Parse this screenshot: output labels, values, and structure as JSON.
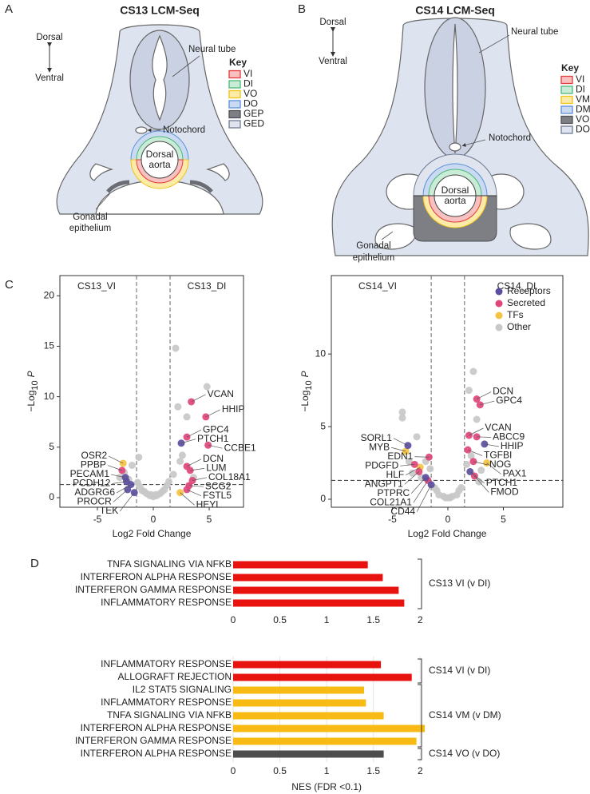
{
  "panel_labels": [
    "A",
    "B",
    "C",
    "D"
  ],
  "diagrams": [
    {
      "title": "CS13 LCM-Seq",
      "orientation": [
        "Dorsal",
        "Ventral"
      ],
      "neural_tube": "Neural tube",
      "notochord": "Notochord",
      "aorta": [
        "Dorsal",
        "aorta"
      ],
      "gonadal": [
        "Gonadal",
        "epithelium"
      ],
      "key": {
        "title": "Key",
        "items": [
          {
            "label": "VI",
            "fill": "#f9c0c0",
            "stroke": "#e23b3b"
          },
          {
            "label": "DI",
            "fill": "#c9ecd6",
            "stroke": "#4cb87a"
          },
          {
            "label": "VO",
            "fill": "#fbeaa8",
            "stroke": "#f0c419"
          },
          {
            "label": "DO",
            "fill": "#c9daf2",
            "stroke": "#5b8fd6"
          },
          {
            "label": "GEP",
            "fill": "#7d7f85",
            "stroke": "#4d4f55"
          },
          {
            "label": "GED",
            "fill": "#dfe4ef",
            "stroke": "#6f7b94"
          }
        ]
      }
    },
    {
      "title": "CS14 LCM-Seq",
      "orientation": [
        "Dorsal",
        "Ventral"
      ],
      "neural_tube": "Neural tube",
      "notochord": "Notochord",
      "aorta": [
        "Dorsal",
        "aorta"
      ],
      "gonadal": [
        "Gonadal",
        "epithelium"
      ],
      "key": {
        "title": "Key",
        "items": [
          {
            "label": "VI",
            "fill": "#f9c0c0",
            "stroke": "#e23b3b"
          },
          {
            "label": "DI",
            "fill": "#c9ecd6",
            "stroke": "#4cb87a"
          },
          {
            "label": "VM",
            "fill": "#fbeaa8",
            "stroke": "#f0c419"
          },
          {
            "label": "DM",
            "fill": "#c9daf2",
            "stroke": "#5b8fd6"
          },
          {
            "label": "VO",
            "fill": "#7d7f85",
            "stroke": "#4d4f55"
          },
          {
            "label": "DO",
            "fill": "#dfe4ef",
            "stroke": "#6f7b94"
          }
        ]
      }
    }
  ],
  "chart_data": [
    {
      "type": "scatter",
      "annotations": [
        "CS13_VI",
        "CS13_DI"
      ],
      "xlabel": "Log2 Fold Change",
      "ylabel": {
        "text": "−Log",
        "sub": "10",
        "var": "P"
      },
      "xlim": [
        -8.36,
        8.07
      ],
      "ylim": [
        -0.95,
        22
      ],
      "xticks": [
        -5,
        0,
        5
      ],
      "yticks": [
        0,
        5,
        10,
        15,
        20
      ],
      "thresholds": {
        "x": [
          -1.5,
          1.5
        ],
        "y": 1.3
      },
      "series": [
        {
          "color": "#5b4ea0",
          "x": [
            2.5,
            -2.5,
            -2.4,
            -2.0,
            -2.3,
            -1.7
          ],
          "values": [
            5.4,
            2.0,
            1.6,
            1.3,
            0.8,
            0.5
          ],
          "labels": [
            "PTCH1",
            "PECAM1",
            "PCDH12",
            "ADGRG6",
            "PROCR",
            "TEK"
          ]
        },
        {
          "color": "#e0457b",
          "x": [
            3.4,
            4.7,
            3.0,
            4.9,
            3.0,
            3.3,
            3.5,
            3.2,
            3.0,
            -2.8
          ],
          "values": [
            9.5,
            8.0,
            6.0,
            5.2,
            3.1,
            2.7,
            1.7,
            1.2,
            0.8,
            2.7
          ],
          "labels": [
            "VCAN",
            "HHIP",
            "GPC4",
            "CCBE1",
            "DCN",
            "LUM",
            "COL18A1",
            "SCG2",
            "FSTL5",
            "PPBP"
          ]
        },
        {
          "color": "#f5c242",
          "x": [
            -2.7,
            2.4
          ],
          "values": [
            3.4,
            0.5
          ],
          "labels": [
            "OSR2",
            "HEYL"
          ]
        },
        {
          "color": "#c8c8c8",
          "x": [
            2.0,
            4.8,
            2.2,
            3.0,
            -1.3,
            -1.9,
            -2.6,
            -0.3,
            0.3,
            -0.6,
            0.6,
            -1.0,
            1.0,
            0.0,
            -0.2,
            0.2,
            1.4,
            -1.4,
            2.4,
            3.6,
            -2.2,
            1.8,
            -0.8,
            0.8,
            1.2,
            -1.2,
            2.6,
            -3.0
          ],
          "values": [
            14.8,
            11.0,
            9.0,
            8.0,
            4.0,
            3.2,
            2.5,
            0.2,
            0.2,
            0.4,
            0.4,
            0.7,
            0.8,
            0.1,
            0.3,
            0.3,
            1.6,
            1.5,
            3.6,
            2.0,
            1.8,
            2.3,
            0.6,
            0.6,
            1.2,
            1.1,
            4.2,
            2.0
          ]
        }
      ]
    },
    {
      "type": "scatter",
      "annotations": [
        "CS14_VI",
        "CS14_DI"
      ],
      "xlabel": "Log2 Fold Change",
      "ylabel": {
        "text": "−Log",
        "sub": "10",
        "var": "P"
      },
      "xlim": [
        -10.5,
        10.36
      ],
      "ylim": [
        -0.55,
        15.4
      ],
      "xticks": [
        -5,
        0,
        5
      ],
      "yticks": [
        0,
        5,
        10
      ],
      "thresholds": {
        "x": [
          -1.5,
          1.5
        ],
        "y": 1.3
      },
      "legend": "upper right",
      "series": [
        {
          "name": "Receptors",
          "color": "#5b4ea0",
          "x": [
            3.3,
            2.0,
            -3.6,
            -2.0,
            -1.5
          ],
          "values": [
            3.8,
            1.9,
            3.7,
            1.5,
            1.0
          ],
          "labels": [
            "HHIP",
            "PTCH1",
            "SORL1",
            "PTPRC",
            "CD44"
          ]
        },
        {
          "name": "Secreted",
          "color": "#e0457b",
          "x": [
            2.6,
            2.9,
            1.9,
            2.6,
            1.8,
            2.3,
            2.4,
            -1.7,
            -3.0,
            -2.6,
            -1.8
          ],
          "values": [
            6.9,
            6.5,
            4.4,
            4.3,
            3.4,
            2.6,
            1.6,
            2.9,
            2.4,
            1.9,
            1.3
          ],
          "labels": [
            "DCN",
            "GPC4",
            "VCAN",
            "ABCC9",
            "TGFBI",
            "NOG",
            "FMOD",
            "EDN1",
            "PDGFD",
            "ANGPT1",
            "COL21A1"
          ]
        },
        {
          "name": "TFs",
          "color": "#f5c242",
          "x": [
            3.5,
            -3.8,
            -2.5
          ],
          "values": [
            2.5,
            3.3,
            2.2
          ],
          "labels": [
            "PAX1",
            "MYB",
            "HLF"
          ]
        },
        {
          "name": "Other",
          "color": "#c8c8c8",
          "x": [
            2.3,
            1.9,
            2.6,
            -4.1,
            -4.1,
            -2.8,
            -0.8,
            0.8,
            0,
            -0.4,
            0.4,
            -1.2,
            1.2,
            -2.0,
            2.1,
            1.7,
            -1.6,
            3.0,
            -2.4,
            -3.2,
            0.2,
            -0.2,
            1.0,
            -1.0,
            2.8,
            -3.5
          ],
          "values": [
            8.8,
            7.5,
            5.5,
            6.0,
            5.6,
            4.3,
            0.3,
            0.3,
            0.1,
            0.2,
            0.2,
            0.8,
            0.8,
            2.6,
            3.0,
            2.4,
            2.1,
            2.0,
            1.5,
            1.8,
            0.1,
            0.1,
            0.6,
            0.6,
            1.2,
            2.6
          ]
        }
      ]
    },
    {
      "type": "bar",
      "orientation": "horizontal",
      "xlim": [
        0,
        2.1
      ],
      "xticks": [
        0,
        0.5,
        1,
        1.5,
        2
      ],
      "grid": false,
      "groups": [
        {
          "label": "CS13 VI (v DI)",
          "color": "#e8130f",
          "categories": [
            "TNFA SIGNALING VIA NFKB",
            "INTERFERON ALPHA RESPONSE",
            "INTERFERON GAMMA RESPONSE",
            "INFLAMMATORY RESPONSE"
          ],
          "values": [
            1.44,
            1.6,
            1.77,
            1.83
          ]
        }
      ]
    },
    {
      "type": "bar",
      "orientation": "horizontal",
      "xlim": [
        0,
        2.1
      ],
      "xticks": [
        0,
        0.5,
        1,
        1.5,
        2
      ],
      "grid": true,
      "xlabel": "NES (FDR <0.1)",
      "groups": [
        {
          "label": "CS14 VI (v DI)",
          "color": "#e8130f",
          "categories": [
            "INFLAMMATORY RESPONSE",
            "ALLOGRAFT REJECTION"
          ],
          "values": [
            1.58,
            1.91
          ]
        },
        {
          "label": "CS14 VM (v DM)",
          "color": "#f7bb14",
          "categories": [
            "IL2 STAT5 SIGNALING",
            "INFLAMMATORY RESPONSE",
            "TNFA SIGNALING VIA NFKB",
            "INTERFERON ALPHA RESPONSE",
            "INTERFERON GAMMA RESPONSE"
          ],
          "values": [
            1.4,
            1.42,
            1.61,
            2.05,
            1.96
          ]
        },
        {
          "label": "CS14 VO (v DO)",
          "color": "#4d4d4d",
          "categories": [
            "INTERFERON ALPHA RESPONSE"
          ],
          "values": [
            1.61
          ]
        }
      ]
    }
  ]
}
